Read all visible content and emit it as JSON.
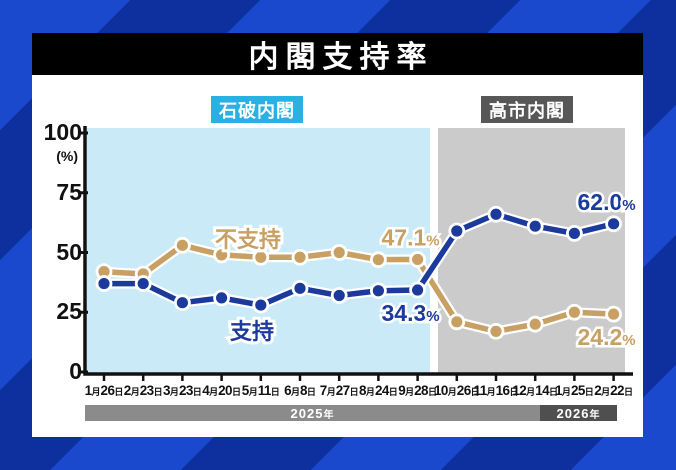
{
  "title": "内閣支持率",
  "title_bar": {
    "bg": "#000000",
    "text_color": "#ffffff"
  },
  "background": {
    "stripe_bright": "#1a49cd",
    "stripe_dark": "#0e2f9e"
  },
  "periods": [
    {
      "label": "石破内閣",
      "tag_bg": "#29b1e3",
      "region_bg": "#c9eaf6"
    },
    {
      "label": "高市内閣",
      "tag_bg": "#575757",
      "region_bg": "#cbcbcb"
    }
  ],
  "year_bars": [
    {
      "year": "2025",
      "suffix": "年",
      "bg": "#8b8b8b"
    },
    {
      "year": "2026",
      "suffix": "年",
      "bg": "#4f4f4f"
    }
  ],
  "chart_data": {
    "type": "line",
    "unit_label": "(%)",
    "ylim": [
      0,
      100
    ],
    "yticks": [
      100,
      75,
      50,
      25,
      0
    ],
    "categories": [
      "1月26日",
      "2月23日",
      "3月23日",
      "4月20日",
      "5月11日",
      "6月8日",
      "7月27日",
      "8月24日",
      "9月28日",
      "10月26日",
      "11月16日",
      "12月14日",
      "1月25日",
      "2月22日"
    ],
    "dates": [
      {
        "month": "1",
        "day": "26"
      },
      {
        "month": "2",
        "day": "23"
      },
      {
        "month": "3",
        "day": "23"
      },
      {
        "month": "4",
        "day": "20"
      },
      {
        "month": "5",
        "day": "11"
      },
      {
        "month": "6",
        "day": "8"
      },
      {
        "month": "7",
        "day": "27"
      },
      {
        "month": "8",
        "day": "24"
      },
      {
        "month": "9",
        "day": "28"
      },
      {
        "month": "10",
        "day": "26"
      },
      {
        "month": "11",
        "day": "16"
      },
      {
        "month": "12",
        "day": "14"
      },
      {
        "month": "1",
        "day": "25"
      },
      {
        "month": "2",
        "day": "22"
      }
    ],
    "month_suffix": "月",
    "day_suffix": "日",
    "percent_sign": "%",
    "series": [
      {
        "name": "不支持",
        "color": "#c8a063",
        "values": [
          42,
          41,
          53,
          49,
          48,
          48,
          50,
          47,
          47.1,
          21,
          17,
          20,
          25,
          24.2
        ],
        "callouts": [
          {
            "index": 8,
            "value": "47.1",
            "position": "above"
          },
          {
            "index": 13,
            "value": "24.2",
            "position": "below"
          }
        ]
      },
      {
        "name": "支持",
        "color": "#1b3a9b",
        "values": [
          37,
          37,
          29,
          31,
          28,
          35,
          32,
          34,
          34.3,
          59,
          66,
          61,
          58,
          62.0
        ],
        "callouts": [
          {
            "index": 8,
            "value": "34.3",
            "position": "below"
          },
          {
            "index": 13,
            "value": "62.0",
            "position": "above"
          }
        ]
      }
    ]
  }
}
